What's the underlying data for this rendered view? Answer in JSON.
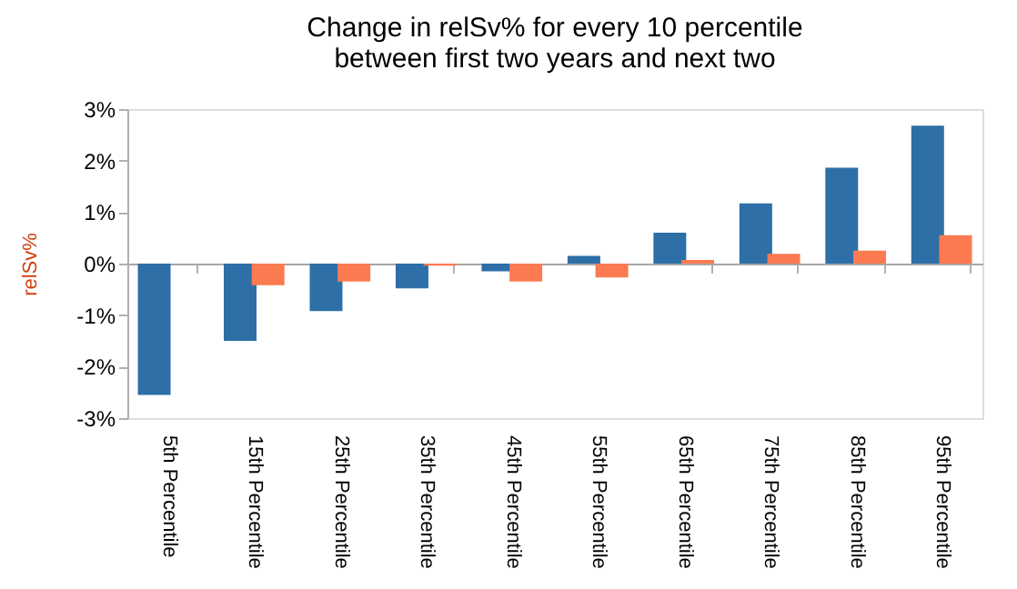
{
  "chart_data": {
    "type": "bar",
    "title": [
      "Change in relSv% for every 10 percentile",
      "between first two years and next two"
    ],
    "ylabel": "relSv%",
    "categories": [
      "5th Percentile",
      "15th Percentile",
      "25th Percentile",
      "35th Percentile",
      "45th Percentile",
      "55th Percentile",
      "65th Percentile",
      "75th Percentile",
      "85th Percentile",
      "95th Percentile"
    ],
    "series": [
      {
        "color": "#2e6fa7",
        "values": [
          -2.55,
          -1.5,
          -0.92,
          -0.48,
          -0.15,
          0.15,
          0.6,
          1.17,
          1.86,
          2.68
        ]
      },
      {
        "color": "#fb7a50",
        "values": [
          null,
          -0.42,
          -0.35,
          -0.04,
          -0.35,
          -0.27,
          0.07,
          0.19,
          0.25,
          0.55
        ]
      }
    ],
    "ylim": [
      -3,
      3
    ],
    "yticks": [
      {
        "value": -3,
        "label": "-3%"
      },
      {
        "value": -2,
        "label": "-2%"
      },
      {
        "value": -1,
        "label": "-1%"
      },
      {
        "value": 0,
        "label": "0%"
      },
      {
        "value": 1,
        "label": "1%"
      },
      {
        "value": 2,
        "label": "2%"
      },
      {
        "value": 3,
        "label": "3%"
      }
    ],
    "legend": false
  }
}
